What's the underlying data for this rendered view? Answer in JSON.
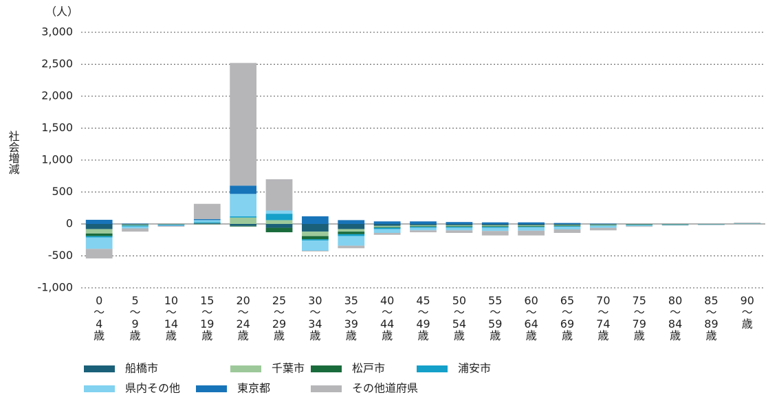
{
  "chart_data": {
    "type": "bar",
    "stacked": true,
    "unit": "（人）",
    "y_label": "社会増減",
    "categories": [
      "0～4歳",
      "5～9歳",
      "10～14歳",
      "15～19歳",
      "20～24歳",
      "25～29歳",
      "30～34歳",
      "35～39歳",
      "40～44歳",
      "45～49歳",
      "50～54歳",
      "55～59歳",
      "60～64歳",
      "65～69歳",
      "70～74歳",
      "75～79歳",
      "80～84歳",
      "85～89歳",
      "90～歳"
    ],
    "series": [
      {
        "name": "船橋市",
        "color": "#1b6079",
        "values": [
          -80,
          -10,
          -5,
          10,
          -30,
          -60,
          -120,
          -80,
          -30,
          -20,
          -20,
          -20,
          -20,
          -15,
          -10,
          -5,
          -5,
          -3,
          2
        ]
      },
      {
        "name": "千葉市",
        "color": "#9dc99a",
        "values": [
          -70,
          -10,
          -5,
          5,
          100,
          60,
          -70,
          -40,
          -20,
          -15,
          -15,
          -15,
          -15,
          -10,
          -10,
          -5,
          -5,
          -3,
          2
        ]
      },
      {
        "name": "松戸市",
        "color": "#1a6b3c",
        "values": [
          -40,
          -5,
          -2,
          -5,
          -10,
          -70,
          -50,
          -40,
          -10,
          -10,
          -10,
          -10,
          -10,
          -10,
          -5,
          -5,
          -3,
          -2,
          1
        ]
      },
      {
        "name": "浦安市",
        "color": "#14a0c9",
        "values": [
          -20,
          -15,
          -5,
          15,
          20,
          100,
          -20,
          -30,
          -20,
          -15,
          -15,
          -15,
          -10,
          -10,
          -5,
          -5,
          -3,
          -2,
          1
        ]
      },
      {
        "name": "県内その他",
        "color": "#82d2f0",
        "values": [
          -180,
          -30,
          -10,
          30,
          350,
          50,
          -160,
          -150,
          -60,
          -40,
          -40,
          -50,
          -50,
          -40,
          -30,
          -15,
          -5,
          -5,
          5
        ]
      },
      {
        "name": "東京都",
        "color": "#1874b9",
        "values": [
          65,
          5,
          -5,
          15,
          130,
          0,
          120,
          60,
          40,
          40,
          30,
          25,
          25,
          15,
          5,
          0,
          0,
          0,
          0
        ]
      },
      {
        "name": "その他道府県",
        "color": "#b6b6b9",
        "values": [
          -150,
          -50,
          -10,
          240,
          1920,
          490,
          -10,
          -40,
          -30,
          -30,
          -40,
          -70,
          -75,
          -55,
          -40,
          -10,
          -5,
          -5,
          10
        ]
      }
    ],
    "ylim": [
      -1000,
      3000
    ],
    "yticks": [
      {
        "value": -1000,
        "label": "-1,000"
      },
      {
        "value": -500,
        "label": "-500"
      },
      0,
      500,
      {
        "value": 1000,
        "label": "1,000"
      },
      {
        "value": 1500,
        "label": "1,500"
      },
      {
        "value": 2000,
        "label": "2,000"
      },
      {
        "value": 2500,
        "label": "2,500"
      },
      {
        "value": 3000,
        "label": "3,000"
      }
    ],
    "grid": true
  }
}
